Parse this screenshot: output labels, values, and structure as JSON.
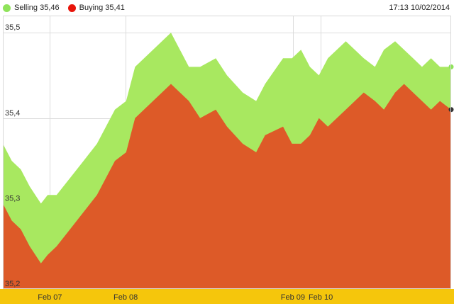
{
  "legend": {
    "selling": {
      "label": "Selling 35,46",
      "color": "#8fe35a"
    },
    "buying": {
      "label": "Buying 35,41",
      "color": "#e8140a"
    }
  },
  "timestamp": "17:13 10/02/2014",
  "chart_data": {
    "type": "area",
    "ylim": [
      35.2,
      35.52
    ],
    "xlim": [
      0,
      100
    ],
    "grid": true,
    "legend_placement": "top-left",
    "y_ticks": [
      {
        "value": 35.2,
        "label": "35,2"
      },
      {
        "value": 35.3,
        "label": "35,3"
      },
      {
        "value": 35.4,
        "label": "35,4"
      },
      {
        "value": 35.5,
        "label": "35,5"
      }
    ],
    "x_ticks": [
      {
        "value": 10.5,
        "label": "Feb 07"
      },
      {
        "value": 27.4,
        "label": "Feb 08"
      },
      {
        "value": 64.7,
        "label": "Feb 09"
      },
      {
        "value": 70.9,
        "label": "Feb 10"
      }
    ],
    "x": [
      0,
      2,
      4,
      6,
      8.5,
      10,
      12,
      15,
      18,
      21,
      25,
      27.5,
      29.5,
      33.5,
      37.5,
      41.5,
      44,
      47.5,
      50,
      53.5,
      56.5,
      58.5,
      62.5,
      64.5,
      66.5,
      68.5,
      70.5,
      72.5,
      76.5,
      80.5,
      83,
      85,
      87.5,
      89.5,
      91.5,
      93.5,
      95.5,
      97.5,
      100
    ],
    "series": [
      {
        "name": "Selling",
        "color": "#a8e860",
        "values": [
          35.37,
          35.35,
          35.34,
          35.32,
          35.3,
          35.31,
          35.31,
          35.33,
          35.35,
          35.37,
          35.41,
          35.42,
          35.46,
          35.48,
          35.5,
          35.46,
          35.46,
          35.47,
          35.45,
          35.43,
          35.42,
          35.44,
          35.47,
          35.47,
          35.48,
          35.46,
          35.45,
          35.47,
          35.49,
          35.47,
          35.46,
          35.48,
          35.49,
          35.48,
          35.47,
          35.46,
          35.47,
          35.46,
          35.46
        ]
      },
      {
        "name": "Buying",
        "color": "#dd5a28",
        "values": [
          35.3,
          35.28,
          35.27,
          35.25,
          35.23,
          35.24,
          35.25,
          35.27,
          35.29,
          35.31,
          35.35,
          35.36,
          35.4,
          35.42,
          35.44,
          35.42,
          35.4,
          35.41,
          35.39,
          35.37,
          35.36,
          35.38,
          35.39,
          35.37,
          35.37,
          35.38,
          35.4,
          35.39,
          35.41,
          35.43,
          35.42,
          35.41,
          35.43,
          35.44,
          35.43,
          35.42,
          35.41,
          35.42,
          35.41
        ]
      }
    ]
  }
}
